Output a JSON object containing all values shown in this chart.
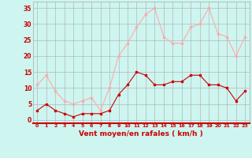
{
  "x": [
    0,
    1,
    2,
    3,
    4,
    5,
    6,
    7,
    8,
    9,
    10,
    11,
    12,
    13,
    14,
    15,
    16,
    17,
    18,
    19,
    20,
    21,
    22,
    23
  ],
  "wind_avg": [
    3,
    5,
    3,
    2,
    1,
    2,
    2,
    2,
    3,
    8,
    11,
    15,
    14,
    11,
    11,
    12,
    12,
    14,
    14,
    11,
    11,
    10,
    6,
    9
  ],
  "wind_gust": [
    11,
    14,
    9,
    6,
    5,
    6,
    7,
    3,
    10,
    20,
    24,
    29,
    33,
    35,
    26,
    24,
    24,
    29,
    30,
    35,
    27,
    26,
    20,
    26
  ],
  "color_avg": "#cc0000",
  "color_gust": "#ffaaaa",
  "bg_color": "#cef5f0",
  "grid_color": "#aaaaaa",
  "xlabel": "Vent moyen/en rafales ( km/h )",
  "xlabel_color": "#cc0000",
  "tick_color": "#cc0000",
  "ylim": [
    -1,
    37
  ],
  "yticks": [
    0,
    5,
    10,
    15,
    20,
    25,
    30,
    35
  ],
  "xlim": [
    -0.5,
    23.5
  ]
}
